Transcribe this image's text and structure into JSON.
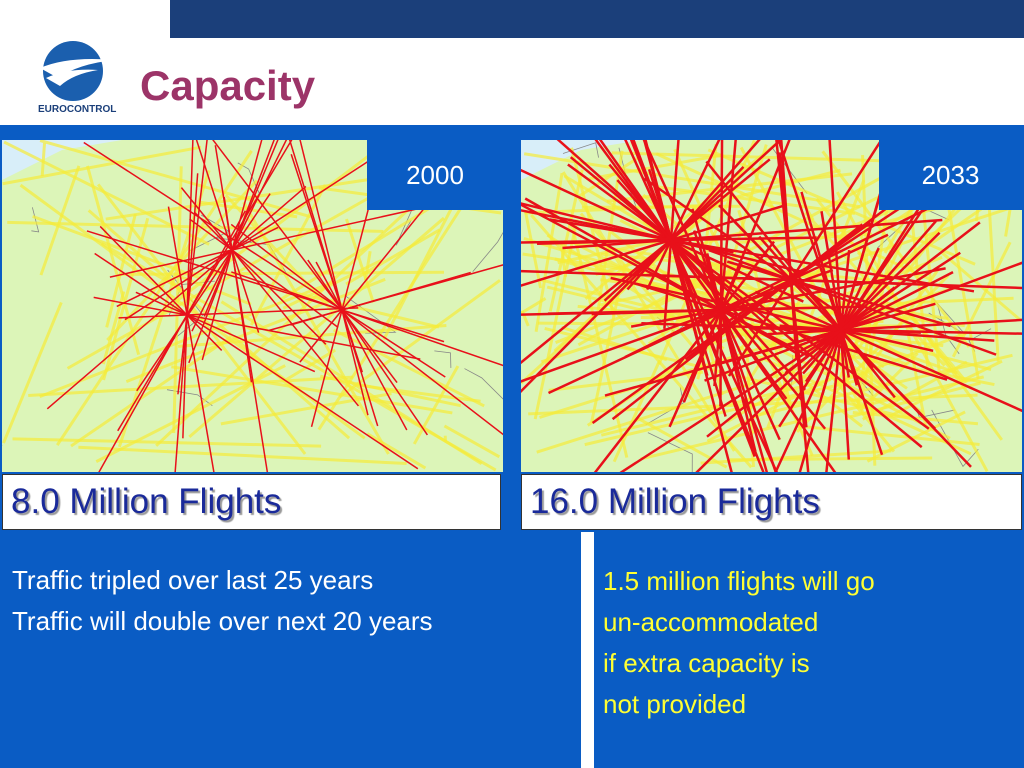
{
  "header": {
    "logo_text": "EUROCONTROL",
    "title": "Capacity"
  },
  "panels": [
    {
      "year": "2000",
      "caption": "8.0 Million Flights"
    },
    {
      "year": "2033",
      "caption": "16.0 Million Flights"
    }
  ],
  "notes": {
    "left": [
      "Traffic tripled over last 25 years",
      "Traffic will double over next 20 years"
    ],
    "right": [
      "1.5 million flights will go",
      "un-accommodated",
      "if extra capacity is",
      "not provided"
    ]
  }
}
